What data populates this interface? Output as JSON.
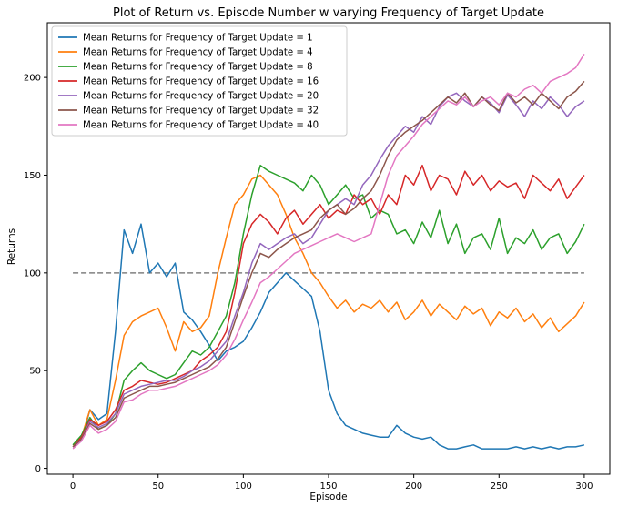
{
  "chart_data": {
    "type": "line",
    "title": "Plot of Return vs. Episode Number w varying Frequency of Target Update",
    "xlabel": "Episode",
    "ylabel": "Returns",
    "xlim": [
      -15,
      315
    ],
    "ylim": [
      -3,
      228
    ],
    "xticks": [
      0,
      50,
      100,
      150,
      200,
      250,
      300
    ],
    "yticks": [
      0,
      50,
      100,
      150,
      200
    ],
    "grid": false,
    "legend_position": "top-left",
    "reference_line": {
      "y": 100,
      "x_start": 0,
      "x_end": 300,
      "style": "dashed",
      "color": "#808080"
    },
    "x": [
      0,
      5,
      10,
      15,
      20,
      25,
      30,
      35,
      40,
      45,
      50,
      55,
      60,
      65,
      70,
      75,
      80,
      85,
      90,
      95,
      100,
      105,
      110,
      115,
      120,
      125,
      130,
      135,
      140,
      145,
      150,
      155,
      160,
      165,
      170,
      175,
      180,
      185,
      190,
      195,
      200,
      205,
      210,
      215,
      220,
      225,
      230,
      235,
      240,
      245,
      250,
      255,
      260,
      265,
      270,
      275,
      280,
      285,
      290,
      295,
      300
    ],
    "series": [
      {
        "name": "Mean Returns for Frequency of Target Update = 1",
        "color": "#1f77b4",
        "values": [
          11,
          14,
          30,
          25,
          28,
          70,
          122,
          110,
          125,
          100,
          105,
          98,
          105,
          80,
          76,
          70,
          63,
          55,
          60,
          62,
          65,
          72,
          80,
          90,
          95,
          100,
          96,
          92,
          88,
          70,
          40,
          28,
          22,
          20,
          18,
          17,
          16,
          16,
          22,
          18,
          16,
          15,
          16,
          12,
          10,
          10,
          11,
          12,
          10,
          10,
          10,
          10,
          11,
          10,
          11,
          10,
          11,
          10,
          11,
          11,
          12
        ]
      },
      {
        "name": "Mean Returns for Frequency of Target Update = 4",
        "color": "#ff7f0e",
        "values": [
          12,
          16,
          30,
          22,
          25,
          45,
          68,
          75,
          78,
          80,
          82,
          72,
          60,
          75,
          70,
          72,
          78,
          100,
          118,
          135,
          140,
          148,
          150,
          145,
          140,
          130,
          118,
          110,
          100,
          95,
          88,
          82,
          86,
          80,
          84,
          82,
          86,
          80,
          85,
          76,
          80,
          86,
          78,
          84,
          80,
          76,
          83,
          79,
          82,
          73,
          80,
          77,
          82,
          75,
          79,
          72,
          77,
          70,
          74,
          78,
          85
        ]
      },
      {
        "name": "Mean Returns for Frequency of Target Update = 8",
        "color": "#2ca02c",
        "values": [
          12,
          17,
          26,
          20,
          22,
          28,
          45,
          50,
          54,
          50,
          48,
          46,
          48,
          54,
          60,
          58,
          62,
          70,
          78,
          95,
          120,
          140,
          155,
          152,
          150,
          148,
          146,
          142,
          150,
          145,
          135,
          140,
          145,
          138,
          140,
          128,
          132,
          130,
          120,
          122,
          115,
          126,
          118,
          132,
          115,
          125,
          110,
          118,
          120,
          112,
          128,
          110,
          118,
          115,
          122,
          112,
          118,
          120,
          110,
          116,
          125
        ]
      },
      {
        "name": "Mean Returns for Frequency of Target Update = 16",
        "color": "#d62728",
        "values": [
          11,
          16,
          25,
          22,
          24,
          30,
          40,
          42,
          45,
          44,
          43,
          44,
          46,
          48,
          50,
          55,
          58,
          62,
          70,
          90,
          115,
          125,
          130,
          126,
          120,
          128,
          132,
          125,
          130,
          135,
          128,
          132,
          130,
          140,
          135,
          138,
          130,
          140,
          135,
          150,
          145,
          155,
          142,
          150,
          148,
          140,
          152,
          145,
          150,
          142,
          147,
          144,
          146,
          138,
          150,
          146,
          142,
          148,
          138,
          144,
          150
        ]
      },
      {
        "name": "Mean Returns for Frequency of Target Update = 20",
        "color": "#9467bd",
        "values": [
          11,
          15,
          24,
          21,
          23,
          28,
          38,
          40,
          42,
          43,
          44,
          45,
          45,
          47,
          50,
          52,
          55,
          60,
          65,
          78,
          90,
          105,
          115,
          112,
          115,
          118,
          120,
          115,
          118,
          125,
          132,
          135,
          138,
          135,
          145,
          150,
          158,
          165,
          170,
          175,
          172,
          180,
          176,
          185,
          190,
          192,
          188,
          185,
          190,
          187,
          182,
          191,
          186,
          180,
          188,
          184,
          190,
          186,
          180,
          185,
          188
        ]
      },
      {
        "name": "Mean Returns for Frequency of Target Update = 32",
        "color": "#8c564b",
        "values": [
          11,
          15,
          23,
          20,
          22,
          26,
          36,
          38,
          40,
          42,
          42,
          43,
          44,
          46,
          48,
          50,
          52,
          56,
          62,
          75,
          88,
          100,
          110,
          108,
          112,
          115,
          118,
          120,
          122,
          128,
          132,
          135,
          130,
          133,
          138,
          142,
          150,
          160,
          168,
          172,
          175,
          178,
          182,
          186,
          190,
          187,
          192,
          185,
          190,
          186,
          183,
          192,
          187,
          190,
          186,
          192,
          188,
          184,
          190,
          193,
          198
        ]
      },
      {
        "name": "Mean Returns for Frequency of Target Update = 40",
        "color": "#e377c2",
        "values": [
          10,
          14,
          22,
          18,
          20,
          24,
          34,
          35,
          38,
          40,
          40,
          41,
          42,
          44,
          46,
          48,
          50,
          53,
          58,
          66,
          76,
          85,
          95,
          98,
          102,
          106,
          110,
          112,
          114,
          116,
          118,
          120,
          118,
          116,
          118,
          120,
          135,
          150,
          160,
          165,
          170,
          176,
          180,
          184,
          188,
          186,
          190,
          185,
          188,
          190,
          186,
          192,
          190,
          194,
          196,
          192,
          198,
          200,
          202,
          205,
          212
        ]
      }
    ]
  }
}
